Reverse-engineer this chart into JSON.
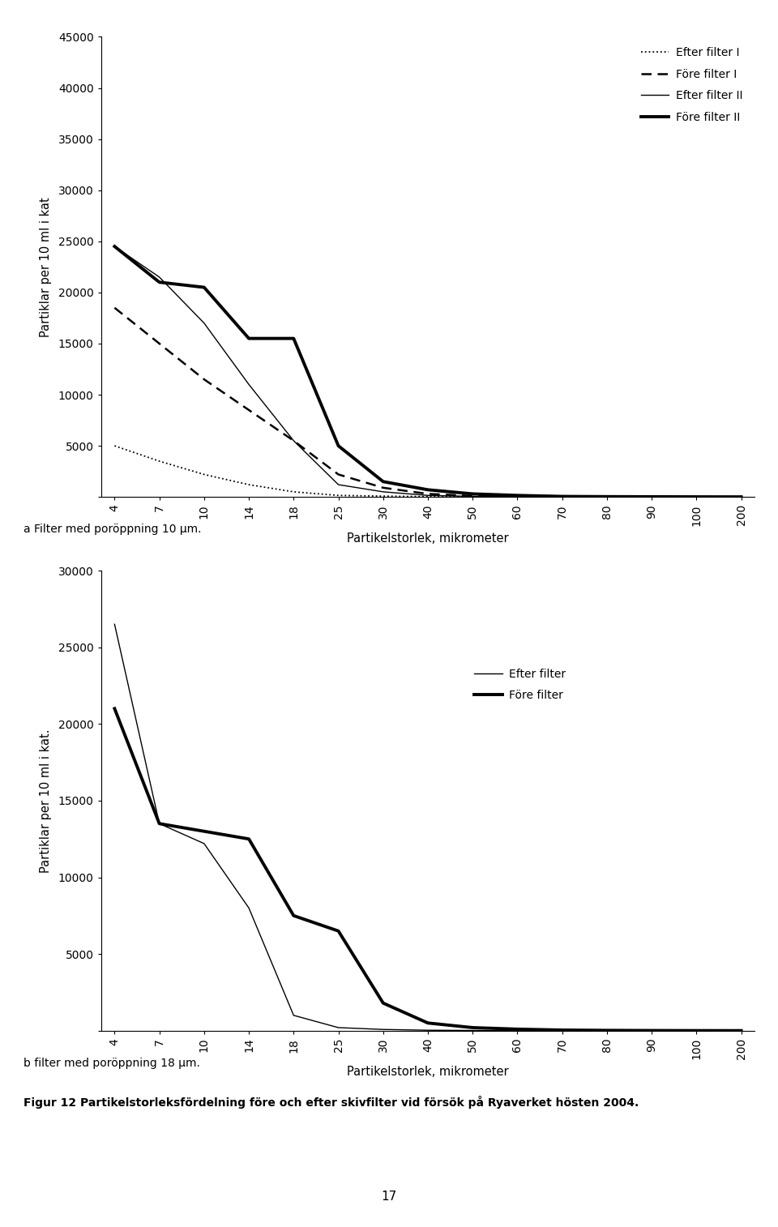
{
  "x_labels": [
    4,
    7,
    10,
    14,
    18,
    25,
    30,
    40,
    50,
    60,
    70,
    80,
    90,
    100,
    200
  ],
  "chart_a": {
    "efter_filter_I": [
      5000,
      3500,
      2200,
      1200,
      500,
      150,
      80,
      30,
      15,
      10,
      5,
      3,
      2,
      1,
      1
    ],
    "fore_filter_I": [
      18500,
      15000,
      11500,
      8500,
      5500,
      2200,
      900,
      300,
      100,
      50,
      30,
      20,
      10,
      5,
      5
    ],
    "efter_filter_II": [
      24500,
      21500,
      17000,
      11000,
      5500,
      1200,
      500,
      150,
      60,
      30,
      15,
      8,
      5,
      3,
      2
    ],
    "fore_filter_II": [
      24500,
      21000,
      20500,
      15500,
      15500,
      5000,
      1500,
      700,
      300,
      150,
      50,
      30,
      20,
      10,
      5
    ],
    "ylabel": "Partiklar per 10 ml i kat",
    "xlabel": "Partikelstorlek, mikrometer",
    "ylim": [
      0,
      45000
    ],
    "yticks": [
      0,
      5000,
      10000,
      15000,
      20000,
      25000,
      30000,
      35000,
      40000,
      45000
    ],
    "legend_labels": [
      "Efter filter I",
      "Före filter I",
      "Efter filter II",
      "Före filter II"
    ],
    "caption": "a Filter med poröppning 10 μm."
  },
  "chart_b": {
    "efter_filter": [
      26500,
      13500,
      12200,
      8000,
      1000,
      200,
      80,
      30,
      15,
      8,
      5,
      3,
      2,
      1,
      1
    ],
    "fore_filter": [
      21000,
      13500,
      13000,
      12500,
      7500,
      6500,
      1800,
      500,
      200,
      100,
      40,
      20,
      10,
      5,
      3
    ],
    "ylabel": "Partiklar per 10 ml i kat.",
    "xlabel": "Partikelstorlek, mikrometer",
    "ylim": [
      0,
      30000
    ],
    "yticks": [
      0,
      5000,
      10000,
      15000,
      20000,
      25000,
      30000
    ],
    "legend_labels": [
      "Efter filter",
      "Före filter"
    ],
    "caption": "b filter med poröppning 18 μm."
  },
  "figure_caption": "Figur 12 Partikelstorleksfördelning före och efter skivfilter vid försök på Ryaverket hösten 2004.",
  "page_number": "17",
  "fig_width": 9.6,
  "fig_height": 15.14
}
